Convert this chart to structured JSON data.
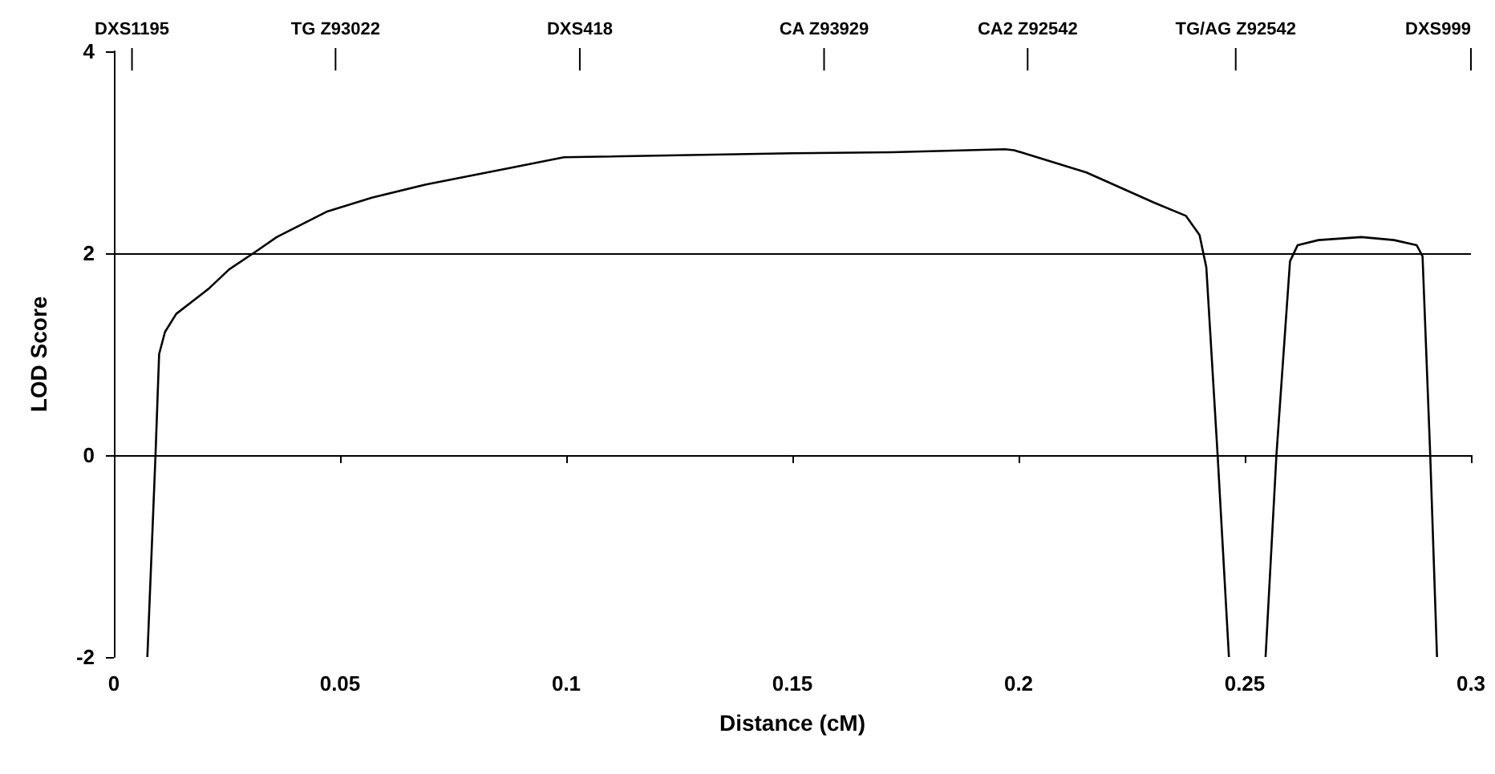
{
  "chart_data": {
    "type": "line",
    "xlabel": "Distance (cM)",
    "ylabel": "LOD Score",
    "xlim": [
      0,
      0.3
    ],
    "xticks": [
      0,
      0.05,
      0.1,
      0.15,
      0.2,
      0.25,
      0.3
    ],
    "ylim": [
      -2,
      4
    ],
    "yticks": [
      -2,
      0,
      2,
      4
    ],
    "grid": false,
    "marker": "none",
    "line_style": "solid",
    "ref_lines": [
      {
        "axis": "y",
        "value": 0,
        "color": "#000000"
      },
      {
        "axis": "y",
        "value": 2,
        "color": "#000000"
      },
      {
        "axis": "x",
        "value": 0.004,
        "label": "DXS1195",
        "color": "#000000"
      },
      {
        "axis": "x",
        "value": 0.049,
        "label": "TG Z93022",
        "color": "#000000"
      },
      {
        "axis": "x",
        "value": 0.103,
        "label": "DXS418",
        "color": "#000000"
      },
      {
        "axis": "x",
        "value": 0.157,
        "label": "CA Z93929",
        "color": "#000000"
      },
      {
        "axis": "x",
        "value": 0.202,
        "label": "CA2 Z92542",
        "color": "#000000"
      },
      {
        "axis": "x",
        "value": 0.248,
        "label": "TG/AG Z92542",
        "color": "#000000"
      },
      {
        "axis": "x",
        "value": 0.3,
        "label": "DXS999",
        "color": "#000000"
      }
    ],
    "series": [
      {
        "color": "#000000",
        "x": [
          0.0074,
          0.0092,
          0.01,
          0.0113,
          0.0138,
          0.021,
          0.0255,
          0.0315,
          0.036,
          0.047,
          0.057,
          0.069,
          0.087,
          0.0995,
          0.15,
          0.172,
          0.197,
          0.199,
          0.215,
          0.23,
          0.237,
          0.24,
          0.2415,
          0.244,
          0.2465,
          0.25,
          0.2546,
          0.257,
          0.26,
          0.2617,
          0.2663,
          0.2758,
          0.283,
          0.288,
          0.2893,
          0.291,
          0.2925
        ],
        "values": [
          -2,
          0,
          1.0,
          1.22,
          1.4,
          1.65,
          1.84,
          2.02,
          2.16,
          2.41,
          2.55,
          2.68,
          2.84,
          2.95,
          2.99,
          3.0,
          3.03,
          3.02,
          2.8,
          2.5,
          2.37,
          2.18,
          1.86,
          0,
          -2,
          null,
          -2,
          0,
          1.92,
          2.08,
          2.13,
          2.16,
          2.13,
          2.08,
          1.97,
          0,
          -2
        ]
      }
    ]
  }
}
